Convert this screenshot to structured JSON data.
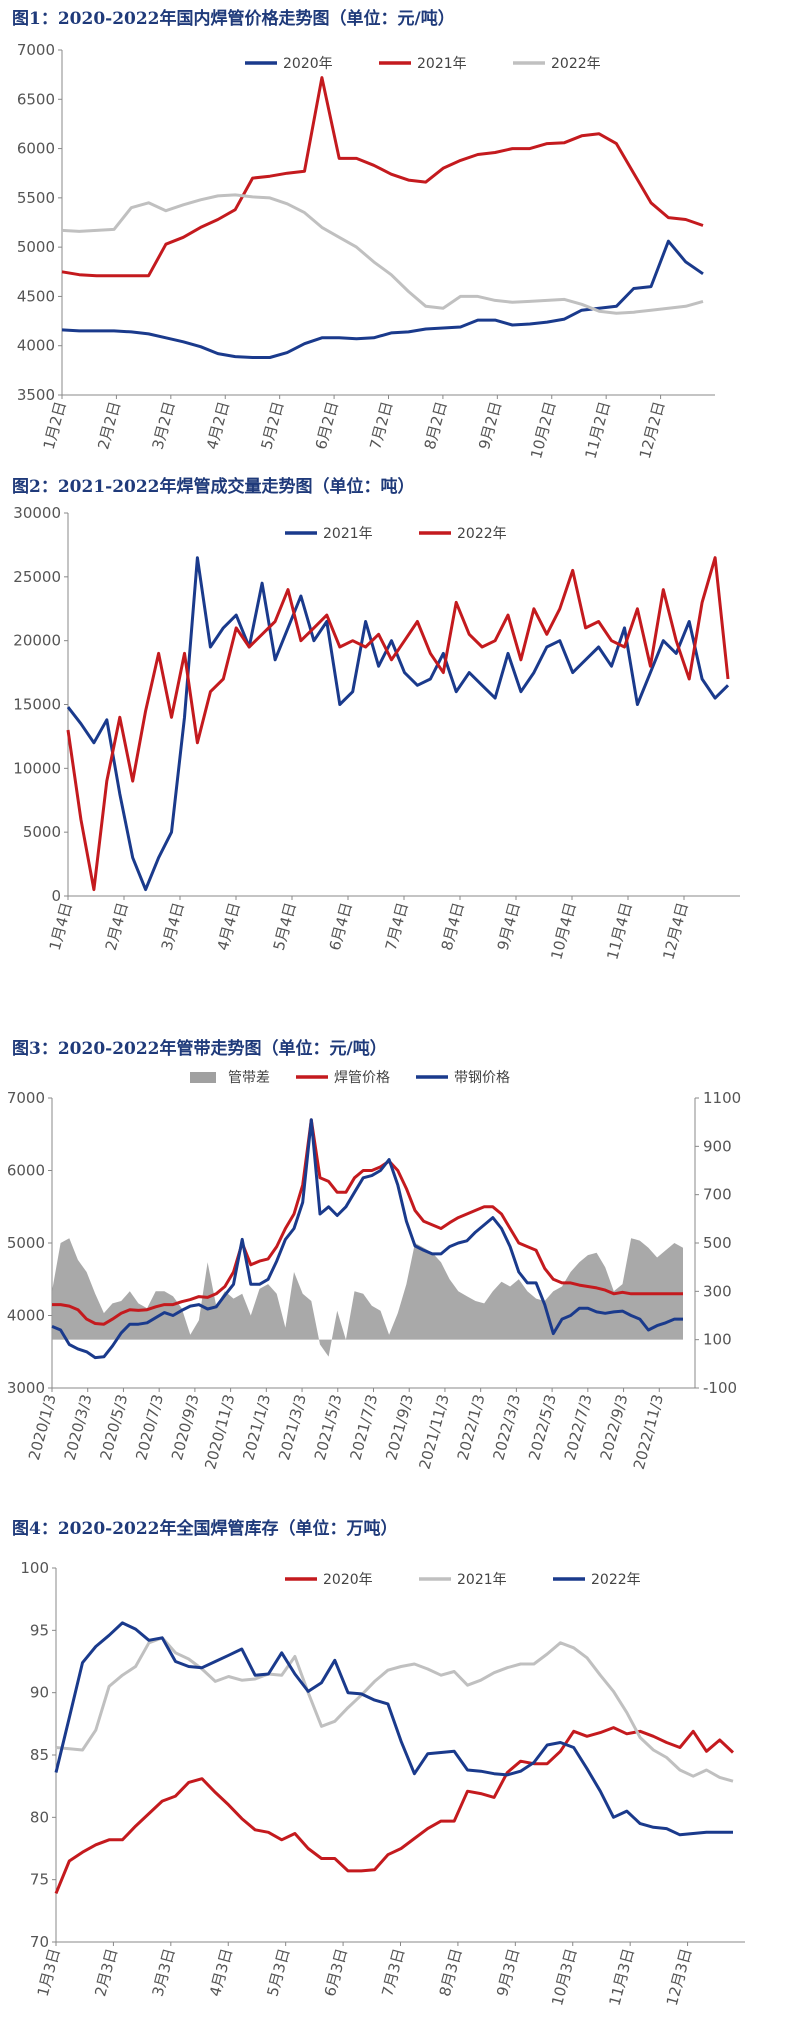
{
  "charts": [
    {
      "type": "line",
      "title": "图1：2020-2022年国内焊管价格走势图（单位：元/吨）",
      "ylim": [
        3500,
        7000
      ],
      "yticks": [
        "3500",
        "4000",
        "4500",
        "5000",
        "5500",
        "6000",
        "6500",
        "7000"
      ],
      "xticks": [
        "1月2日",
        "2月2日",
        "3月2日",
        "4月2日",
        "5月2日",
        "6月2日",
        "7月2日",
        "8月2日",
        "9月2日",
        "10月2日",
        "11月2日",
        "12月2日"
      ],
      "legend_position": "top-right",
      "series": [
        {
          "name": "2020年",
          "color": "#1a3a8c",
          "values": [
            4160,
            4150,
            4150,
            4150,
            4140,
            4120,
            4080,
            4040,
            3990,
            3920,
            3890,
            3880,
            3880,
            3930,
            4020,
            4080,
            4080,
            4070,
            4080,
            4130,
            4140,
            4170,
            4180,
            4190,
            4260,
            4260,
            4210,
            4220,
            4240,
            4270,
            4360,
            4380,
            4400,
            4580,
            4600,
            5060,
            4850,
            4730
          ]
        },
        {
          "name": "2021年",
          "color": "#c41a1e",
          "values": [
            4750,
            4720,
            4710,
            4710,
            4710,
            4710,
            5030,
            5100,
            5200,
            5280,
            5380,
            5700,
            5720,
            5750,
            5770,
            6720,
            5900,
            5900,
            5830,
            5740,
            5680,
            5660,
            5800,
            5880,
            5940,
            5960,
            6000,
            6000,
            6050,
            6060,
            6130,
            6150,
            6050,
            5750,
            5450,
            5300,
            5280,
            5220
          ]
        },
        {
          "name": "2022年",
          "color": "#c0c0c0",
          "values": [
            5170,
            5160,
            5170,
            5180,
            5400,
            5450,
            5370,
            5430,
            5480,
            5520,
            5530,
            5510,
            5500,
            5440,
            5350,
            5200,
            5100,
            5000,
            4850,
            4720,
            4550,
            4400,
            4380,
            4500,
            4500,
            4460,
            4440,
            4450,
            4460,
            4470,
            4420,
            4350,
            4330,
            4340,
            4360,
            4380,
            4400,
            4450
          ]
        }
      ]
    },
    {
      "type": "line",
      "title": "图2：2021-2022年焊管成交量走势图（单位：吨）",
      "ylim": [
        0,
        30000
      ],
      "yticks": [
        "0",
        "5000",
        "10000",
        "15000",
        "20000",
        "25000",
        "30000"
      ],
      "xticks": [
        "1月4日",
        "2月4日",
        "3月4日",
        "4月4日",
        "5月4日",
        "6月4日",
        "7月4日",
        "8月4日",
        "9月4日",
        "10月4日",
        "11月4日",
        "12月4日"
      ],
      "legend_position": "top-center",
      "series": [
        {
          "name": "2021年",
          "color": "#1a3a8c",
          "values": [
            14800,
            13500,
            12000,
            13800,
            8000,
            3000,
            500,
            3000,
            5000,
            14000,
            26500,
            19500,
            21000,
            22000,
            19500,
            24500,
            18500,
            21000,
            23500,
            20000,
            21500,
            15000,
            16000,
            21500,
            18000,
            20000,
            17500,
            16500,
            17000,
            19000,
            16000,
            17500,
            16500,
            15500,
            19000,
            16000,
            17500,
            19500,
            20000,
            17500,
            18500,
            19500,
            18000,
            21000,
            15000,
            17500,
            20000,
            19000,
            21500,
            17000,
            15500,
            16500
          ]
        },
        {
          "name": "2022年",
          "color": "#c41a1e",
          "values": [
            13000,
            6000,
            500,
            9000,
            14000,
            9000,
            14500,
            19000,
            14000,
            19000,
            12000,
            16000,
            17000,
            21000,
            19500,
            20500,
            21500,
            24000,
            20000,
            21000,
            22000,
            19500,
            20000,
            19500,
            20500,
            18500,
            20000,
            21500,
            19000,
            17500,
            23000,
            20500,
            19500,
            20000,
            22000,
            18500,
            22500,
            20500,
            22500,
            25500,
            21000,
            21500,
            20000,
            19500,
            22500,
            18000,
            24000,
            20000,
            17000,
            23000,
            26500,
            17000
          ]
        }
      ]
    },
    {
      "type": "area-line",
      "title": "图3：2020-2022年管带走势图（单位：元/吨）",
      "ylim": [
        3000,
        7000
      ],
      "y2lim": [
        -100,
        1100
      ],
      "yticks": [
        "3000",
        "4000",
        "5000",
        "6000",
        "7000"
      ],
      "y2ticks": [
        "-100",
        "100",
        "300",
        "500",
        "700",
        "900",
        "1100"
      ],
      "xticks": [
        "2020/1/3",
        "2020/3/3",
        "2020/5/3",
        "2020/7/3",
        "2020/9/3",
        "2020/11/3",
        "2021/1/3",
        "2021/3/3",
        "2021/5/3",
        "2021/7/3",
        "2021/9/3",
        "2021/11/3",
        "2022/1/3",
        "2022/3/3",
        "2022/5/3",
        "2022/7/3",
        "2022/9/3",
        "2022/11/3"
      ],
      "legend_position": "top-center",
      "series": [
        {
          "name": "管带差",
          "color": "#a0a0a0",
          "axis": "right",
          "values": [
            300,
            500,
            520,
            430,
            380,
            290,
            210,
            250,
            260,
            300,
            250,
            230,
            300,
            300,
            280,
            230,
            120,
            180,
            420,
            240,
            300,
            270,
            290,
            200,
            310,
            330,
            290,
            150,
            380,
            290,
            260,
            80,
            30,
            220,
            100,
            300,
            290,
            240,
            220,
            120,
            210,
            330,
            500,
            480,
            460,
            420,
            350,
            300,
            280,
            260,
            250,
            300,
            340,
            320,
            350,
            300,
            270,
            260,
            300,
            320,
            380,
            420,
            450,
            460,
            400,
            300,
            330,
            520,
            510,
            480,
            440,
            470,
            500,
            480
          ]
        },
        {
          "name": "焊管价格",
          "color": "#c41a1e",
          "axis": "left",
          "values": [
            4150,
            4150,
            4130,
            4080,
            3950,
            3890,
            3880,
            3950,
            4030,
            4080,
            4070,
            4080,
            4120,
            4150,
            4150,
            4190,
            4220,
            4260,
            4250,
            4300,
            4400,
            4600,
            5000,
            4700,
            4750,
            4780,
            4950,
            5200,
            5400,
            5800,
            6700,
            5900,
            5850,
            5700,
            5700,
            5900,
            6000,
            6000,
            6050,
            6130,
            6000,
            5750,
            5450,
            5300,
            5250,
            5200,
            5280,
            5350,
            5400,
            5450,
            5500,
            5500,
            5400,
            5200,
            5000,
            4950,
            4900,
            4650,
            4500,
            4450,
            4450,
            4420,
            4400,
            4380,
            4350,
            4300,
            4320,
            4300,
            4300,
            4300,
            4300,
            4300,
            4300,
            4300
          ]
        },
        {
          "name": "带钢价格",
          "color": "#1a3a8c",
          "axis": "left",
          "values": [
            3850,
            3800,
            3600,
            3540,
            3500,
            3420,
            3430,
            3580,
            3760,
            3880,
            3880,
            3900,
            3970,
            4040,
            4000,
            4070,
            4130,
            4150,
            4090,
            4120,
            4280,
            4430,
            5050,
            4430,
            4430,
            4500,
            4750,
            5050,
            5200,
            5560,
            6700,
            5400,
            5500,
            5380,
            5500,
            5700,
            5900,
            5930,
            6000,
            6150,
            5800,
            5300,
            4960,
            4900,
            4850,
            4850,
            4950,
            5000,
            5030,
            5150,
            5250,
            5350,
            5200,
            4950,
            4600,
            4450,
            4450,
            4150,
            3750,
            3950,
            4000,
            4100,
            4100,
            4050,
            4030,
            4050,
            4060,
            4000,
            3950,
            3800,
            3860,
            3900,
            3950,
            3950
          ]
        }
      ]
    },
    {
      "type": "line",
      "title": "图4：2020-2022年全国焊管库存（单位：万吨）",
      "ylim": [
        70,
        100
      ],
      "yticks": [
        "70",
        "75",
        "80",
        "85",
        "90",
        "95",
        "100"
      ],
      "xticks": [
        "1月3日",
        "2月3日",
        "3月3日",
        "4月3日",
        "5月3日",
        "6月3日",
        "7月3日",
        "8月3日",
        "9月3日",
        "10月3日",
        "11月3日",
        "12月3日"
      ],
      "legend_position": "top-center",
      "series": [
        {
          "name": "2020年",
          "color": "#c41a1e",
          "values": [
            73.9,
            76.5,
            77.2,
            77.8,
            78.2,
            78.2,
            79.3,
            80.3,
            81.3,
            81.7,
            82.8,
            83.1,
            82.0,
            81.0,
            79.9,
            79.0,
            78.8,
            78.2,
            78.7,
            77.5,
            76.7,
            76.7,
            75.7,
            75.7,
            75.8,
            77.0,
            77.5,
            78.3,
            79.1,
            79.7,
            79.7,
            82.1,
            81.9,
            81.6,
            83.6,
            84.5,
            84.3,
            84.3,
            85.3,
            86.9,
            86.5,
            86.8,
            87.2,
            86.7,
            86.9,
            86.5,
            86.0,
            85.6,
            86.9,
            85.3,
            86.2,
            85.2
          ]
        },
        {
          "name": "2021年",
          "color": "#c0c0c0",
          "values": [
            85.6,
            85.5,
            85.4,
            87.0,
            90.5,
            91.4,
            92.1,
            94.0,
            94.4,
            93.2,
            92.7,
            91.9,
            90.9,
            91.3,
            91.0,
            91.1,
            91.5,
            91.4,
            92.9,
            90.0,
            87.3,
            87.7,
            88.8,
            89.8,
            90.9,
            91.8,
            92.1,
            92.3,
            91.9,
            91.4,
            91.7,
            90.6,
            91.0,
            91.6,
            92.0,
            92.3,
            92.3,
            93.1,
            94.0,
            93.6,
            92.8,
            91.4,
            90.1,
            88.4,
            86.4,
            85.4,
            84.8,
            83.8,
            83.3,
            83.8,
            83.2,
            82.9
          ]
        },
        {
          "name": "2022年",
          "color": "#1a3a8c",
          "values": [
            83.6,
            88.0,
            92.4,
            93.7,
            94.6,
            95.6,
            95.1,
            94.2,
            94.4,
            92.5,
            92.1,
            92.0,
            92.5,
            93.0,
            93.5,
            91.4,
            91.5,
            93.2,
            91.5,
            90.1,
            90.8,
            92.6,
            90.0,
            89.9,
            89.4,
            89.1,
            86.1,
            83.5,
            85.1,
            85.2,
            85.3,
            83.8,
            83.7,
            83.5,
            83.4,
            83.7,
            84.4,
            85.8,
            86.0,
            85.6,
            83.9,
            82.1,
            80.0,
            80.5,
            79.5,
            79.2,
            79.1,
            78.6,
            78.7,
            78.8,
            78.8,
            78.8
          ]
        }
      ]
    }
  ]
}
